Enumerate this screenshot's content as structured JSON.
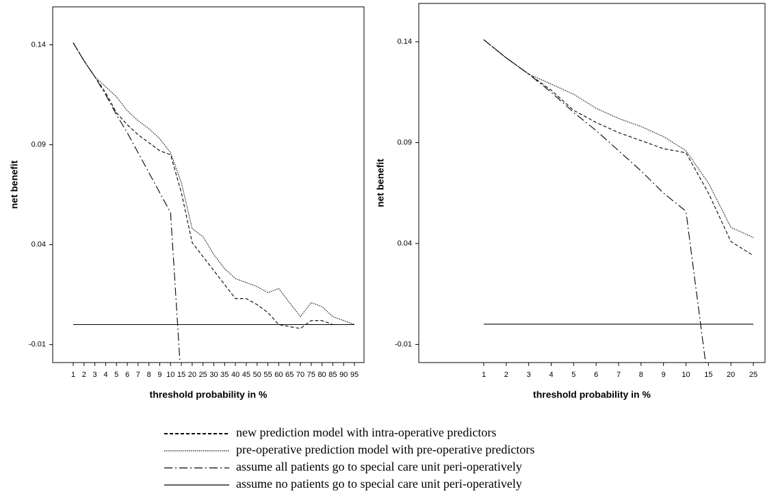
{
  "chart_data": [
    {
      "type": "line",
      "x_label": "threshold probability in %",
      "y_label": "net benefit",
      "categories": [
        "1",
        "2",
        "3",
        "4",
        "5",
        "6",
        "7",
        "8",
        "9",
        "10",
        "15",
        "20",
        "25",
        "30",
        "35",
        "40",
        "45",
        "50",
        "55",
        "60",
        "65",
        "70",
        "75",
        "80",
        "85",
        "90",
        "95"
      ],
      "ylim": [
        -0.019,
        0.159
      ],
      "yticks": [
        0.14,
        0.09,
        0.04,
        -0.01
      ],
      "series": [
        {
          "dash": "dashed",
          "color": "#000000",
          "values": [
            0.141,
            0.132,
            0.124,
            0.116,
            0.106,
            0.1,
            0.095,
            0.091,
            0.087,
            0.085,
            0.066,
            0.041,
            0.034,
            0.027,
            0.02,
            0.013,
            0.013,
            0.01,
            0.006,
            0.0,
            -0.001,
            -0.002,
            0.002,
            0.002,
            0.0,
            0.0,
            0.0
          ]
        },
        {
          "dash": "dotted",
          "color": "#000000",
          "values": [
            0.141,
            0.132,
            0.124,
            0.119,
            0.114,
            0.107,
            0.102,
            0.098,
            0.093,
            0.086,
            0.071,
            0.048,
            0.044,
            0.035,
            0.028,
            0.023,
            0.021,
            0.019,
            0.016,
            0.018,
            0.011,
            0.004,
            0.011,
            0.009,
            0.004,
            0.002,
            0.0
          ]
        },
        {
          "dash": "dashdot",
          "color": "#000000",
          "values": [
            0.141,
            0.132,
            0.124,
            0.115,
            0.105,
            0.096,
            0.086,
            0.076,
            0.066,
            0.056,
            -0.03,
            null,
            null,
            null,
            null,
            null,
            null,
            null,
            null,
            null,
            null,
            null,
            null,
            null,
            null,
            null,
            null
          ]
        },
        {
          "dash": "solid",
          "color": "#000000",
          "values": [
            0,
            0,
            0,
            0,
            0,
            0,
            0,
            0,
            0,
            0,
            0,
            0,
            0,
            0,
            0,
            0,
            0,
            0,
            0,
            0,
            0,
            0,
            0,
            0,
            0,
            0,
            0
          ]
        }
      ]
    },
    {
      "type": "line",
      "x_label": "threshold probability in %",
      "y_label": "net benefit",
      "categories": [
        "1",
        "2",
        "3",
        "4",
        "5",
        "6",
        "7",
        "8",
        "9",
        "10",
        "15",
        "20",
        "25"
      ],
      "ylim": [
        -0.019,
        0.159
      ],
      "yticks": [
        0.14,
        0.09,
        0.04,
        -0.01
      ],
      "series": [
        {
          "dash": "dashed",
          "color": "#000000",
          "values": [
            0.141,
            0.132,
            0.124,
            0.116,
            0.106,
            0.1,
            0.095,
            0.091,
            0.087,
            0.085,
            0.065,
            0.041,
            0.034
          ]
        },
        {
          "dash": "dotted",
          "color": "#000000",
          "values": [
            0.141,
            0.132,
            0.124,
            0.119,
            0.114,
            0.107,
            0.102,
            0.098,
            0.093,
            0.086,
            0.07,
            0.048,
            0.043
          ]
        },
        {
          "dash": "dashdot",
          "color": "#000000",
          "values": [
            0.141,
            0.132,
            0.124,
            0.115,
            0.105,
            0.096,
            0.086,
            0.076,
            0.065,
            0.056,
            -0.03,
            null,
            null
          ]
        },
        {
          "dash": "solid",
          "color": "#000000",
          "values": [
            0,
            0,
            0,
            0,
            0,
            0,
            0,
            0,
            0,
            0,
            0,
            0,
            0
          ]
        }
      ]
    }
  ],
  "legend": [
    {
      "name": "new prediction model with intra-operative predictors",
      "dash": "dashed"
    },
    {
      "name": "pre-operative prediction model with pre-operative predictors",
      "dash": "dotted"
    },
    {
      "name": "assume all patients go to special care unit peri-operatively",
      "dash": "dashdot"
    },
    {
      "name": "assume no patients go to special care unit peri-operatively",
      "dash": "solid"
    }
  ]
}
